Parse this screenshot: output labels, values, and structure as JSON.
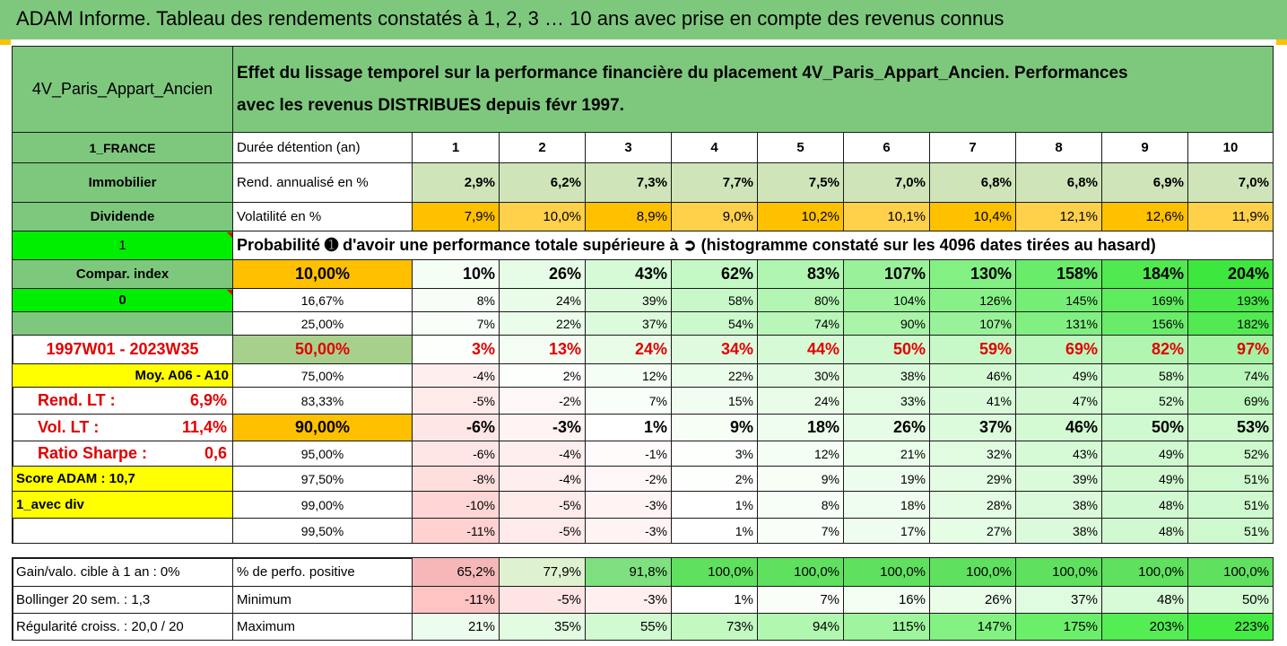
{
  "banner": {
    "title": "ADAM Informe. Tableau des rendements constatés à 1, 2, 3 … 10 ans avec prise en compte des revenus connus"
  },
  "header": {
    "fund": "4V_Paris_Appart_Ancien",
    "description_line1": "Effet du lissage temporel sur la performance financière du placement 4V_Paris_Appart_Ancien. Performances",
    "description_line2": "avec les revenus DISTRIBUES depuis févr 1997."
  },
  "left_labels": {
    "country": "1_FRANCE",
    "asset": "Immobilier",
    "income": "Dividende",
    "selector1": "1",
    "compar_index": "Compar. index",
    "selector0": "0",
    "blank": "",
    "period": "1997W01 - 2023W35",
    "moy_label": "Moy. A06 - A10",
    "rend_lt_label": "Rend. LT :",
    "rend_lt_value": "6,9%",
    "vol_lt_label": "Vol. LT :",
    "vol_lt_value": "11,4%",
    "sharpe_label": "Ratio Sharpe :",
    "sharpe_value": "0,6",
    "score": "Score ADAM : 10,7",
    "avec_div": "1_avec div",
    "blank2": ""
  },
  "years_label": "Durée détention (an)",
  "years": [
    "1",
    "2",
    "3",
    "4",
    "5",
    "6",
    "7",
    "8",
    "9",
    "10"
  ],
  "rend_label": "Rend. annualisé en %",
  "rend": [
    "2,9%",
    "6,2%",
    "7,3%",
    "7,7%",
    "7,5%",
    "7,0%",
    "6,8%",
    "6,8%",
    "6,9%",
    "7,0%"
  ],
  "vol_label": "Volatilité en %",
  "vol": [
    "7,9%",
    "10,0%",
    "8,9%",
    "9,0%",
    "10,2%",
    "10,1%",
    "10,4%",
    "12,1%",
    "12,6%",
    "11,9%"
  ],
  "prob_title": "Probabilité ➊ d'avoir une performance totale supérieure à ➲ (histogramme constaté sur les 4096 dates tirées au hasard)",
  "quantile_rows": [
    {
      "q": "10,00%",
      "v": [
        "10%",
        "26%",
        "43%",
        "62%",
        "83%",
        "107%",
        "130%",
        "158%",
        "184%",
        "204%"
      ]
    },
    {
      "q": "16,67%",
      "v": [
        "8%",
        "24%",
        "39%",
        "58%",
        "80%",
        "104%",
        "126%",
        "145%",
        "169%",
        "193%"
      ]
    },
    {
      "q": "25,00%",
      "v": [
        "7%",
        "22%",
        "37%",
        "54%",
        "74%",
        "90%",
        "107%",
        "131%",
        "156%",
        "182%"
      ]
    },
    {
      "q": "50,00%",
      "v": [
        "3%",
        "13%",
        "24%",
        "34%",
        "44%",
        "50%",
        "59%",
        "69%",
        "82%",
        "97%"
      ]
    },
    {
      "q": "75,00%",
      "v": [
        "-4%",
        "2%",
        "12%",
        "22%",
        "30%",
        "38%",
        "46%",
        "49%",
        "58%",
        "74%"
      ]
    },
    {
      "q": "83,33%",
      "v": [
        "-5%",
        "-2%",
        "7%",
        "15%",
        "24%",
        "33%",
        "41%",
        "47%",
        "52%",
        "69%"
      ]
    },
    {
      "q": "90,00%",
      "v": [
        "-6%",
        "-3%",
        "1%",
        "9%",
        "18%",
        "26%",
        "37%",
        "46%",
        "50%",
        "53%"
      ]
    },
    {
      "q": "95,00%",
      "v": [
        "-6%",
        "-4%",
        "-1%",
        "3%",
        "12%",
        "21%",
        "32%",
        "43%",
        "49%",
        "52%"
      ]
    },
    {
      "q": "97,50%",
      "v": [
        "-8%",
        "-4%",
        "-2%",
        "2%",
        "9%",
        "19%",
        "29%",
        "39%",
        "49%",
        "51%"
      ]
    },
    {
      "q": "99,00%",
      "v": [
        "-10%",
        "-5%",
        "-3%",
        "1%",
        "8%",
        "18%",
        "28%",
        "38%",
        "48%",
        "51%"
      ]
    },
    {
      "q": "99,50%",
      "v": [
        "-11%",
        "-5%",
        "-3%",
        "1%",
        "7%",
        "17%",
        "27%",
        "38%",
        "48%",
        "51%"
      ]
    }
  ],
  "bottom": {
    "r1_left": "Gain/valo. cible à 1 an :  0%",
    "r1_label": "% de perfo. positive",
    "r1": [
      "65,2%",
      "77,9%",
      "91,8%",
      "100,0%",
      "100,0%",
      "100,0%",
      "100,0%",
      "100,0%",
      "100,0%",
      "100,0%"
    ],
    "r2_left": "Bollinger 20 sem. :  1,3",
    "r2_label": "Minimum",
    "r2": [
      "-11%",
      "-5%",
      "-3%",
      "1%",
      "7%",
      "16%",
      "26%",
      "37%",
      "48%",
      "50%"
    ],
    "r3_left": "Régularité croiss. : 20,0 / 20",
    "r3_label": "Maximum",
    "r3": [
      "21%",
      "35%",
      "55%",
      "73%",
      "94%",
      "115%",
      "147%",
      "175%",
      "203%",
      "223%"
    ]
  }
}
